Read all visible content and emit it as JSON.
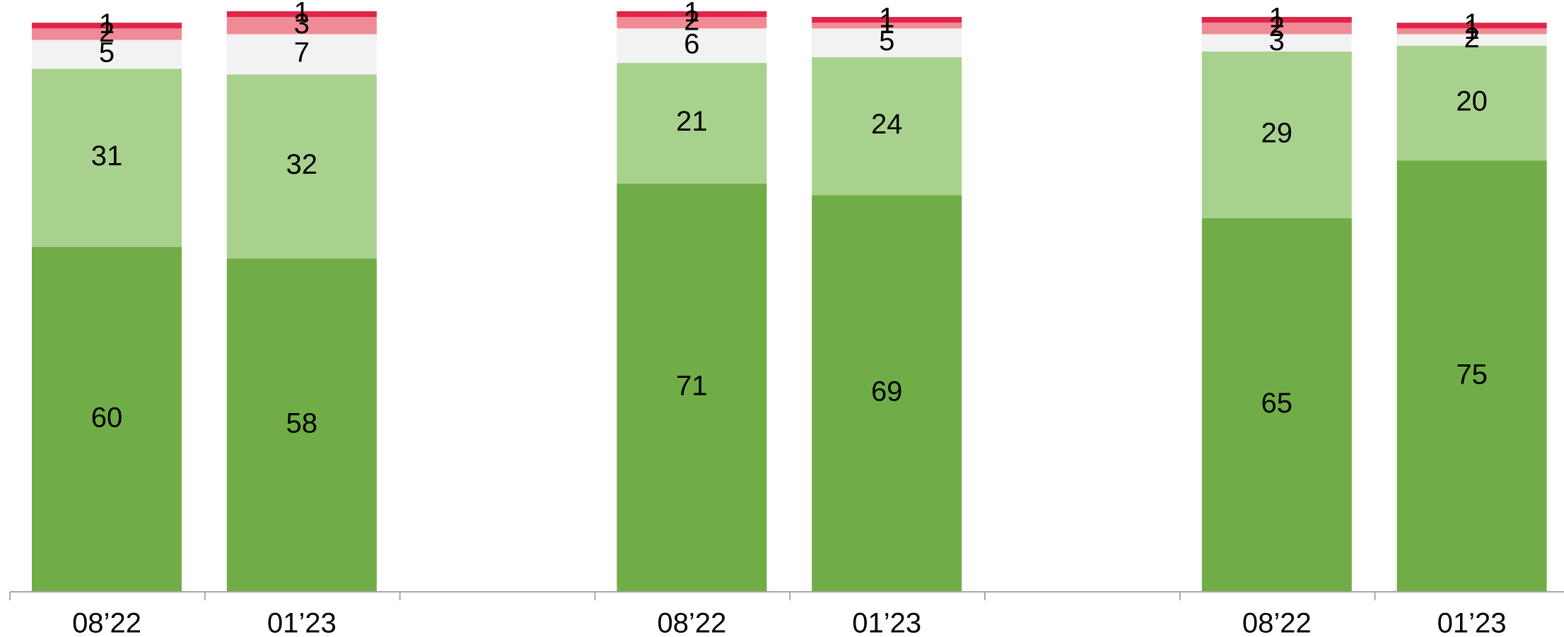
{
  "chart_data": {
    "type": "stacked_bar",
    "categories": [
      "08’22",
      "01’23",
      null,
      "08’22",
      "01’23",
      null,
      "08’22",
      "01’23"
    ],
    "series": [
      {
        "color": "#70ad47",
        "values": [
          60,
          58,
          null,
          71,
          69,
          null,
          65,
          75
        ]
      },
      {
        "color": "#a9d18e",
        "values": [
          31,
          32,
          null,
          21,
          24,
          null,
          29,
          20
        ]
      },
      {
        "color": "#f2f2f2",
        "values": [
          5,
          7,
          null,
          6,
          5,
          null,
          3,
          2
        ]
      },
      {
        "color": "#f08b96",
        "values": [
          2,
          3,
          null,
          2,
          1,
          null,
          2,
          1
        ]
      },
      {
        "color": "#e0254a",
        "values": [
          1,
          1,
          null,
          1,
          1,
          null,
          1,
          1
        ]
      }
    ],
    "ylim": [
      0,
      100
    ]
  }
}
